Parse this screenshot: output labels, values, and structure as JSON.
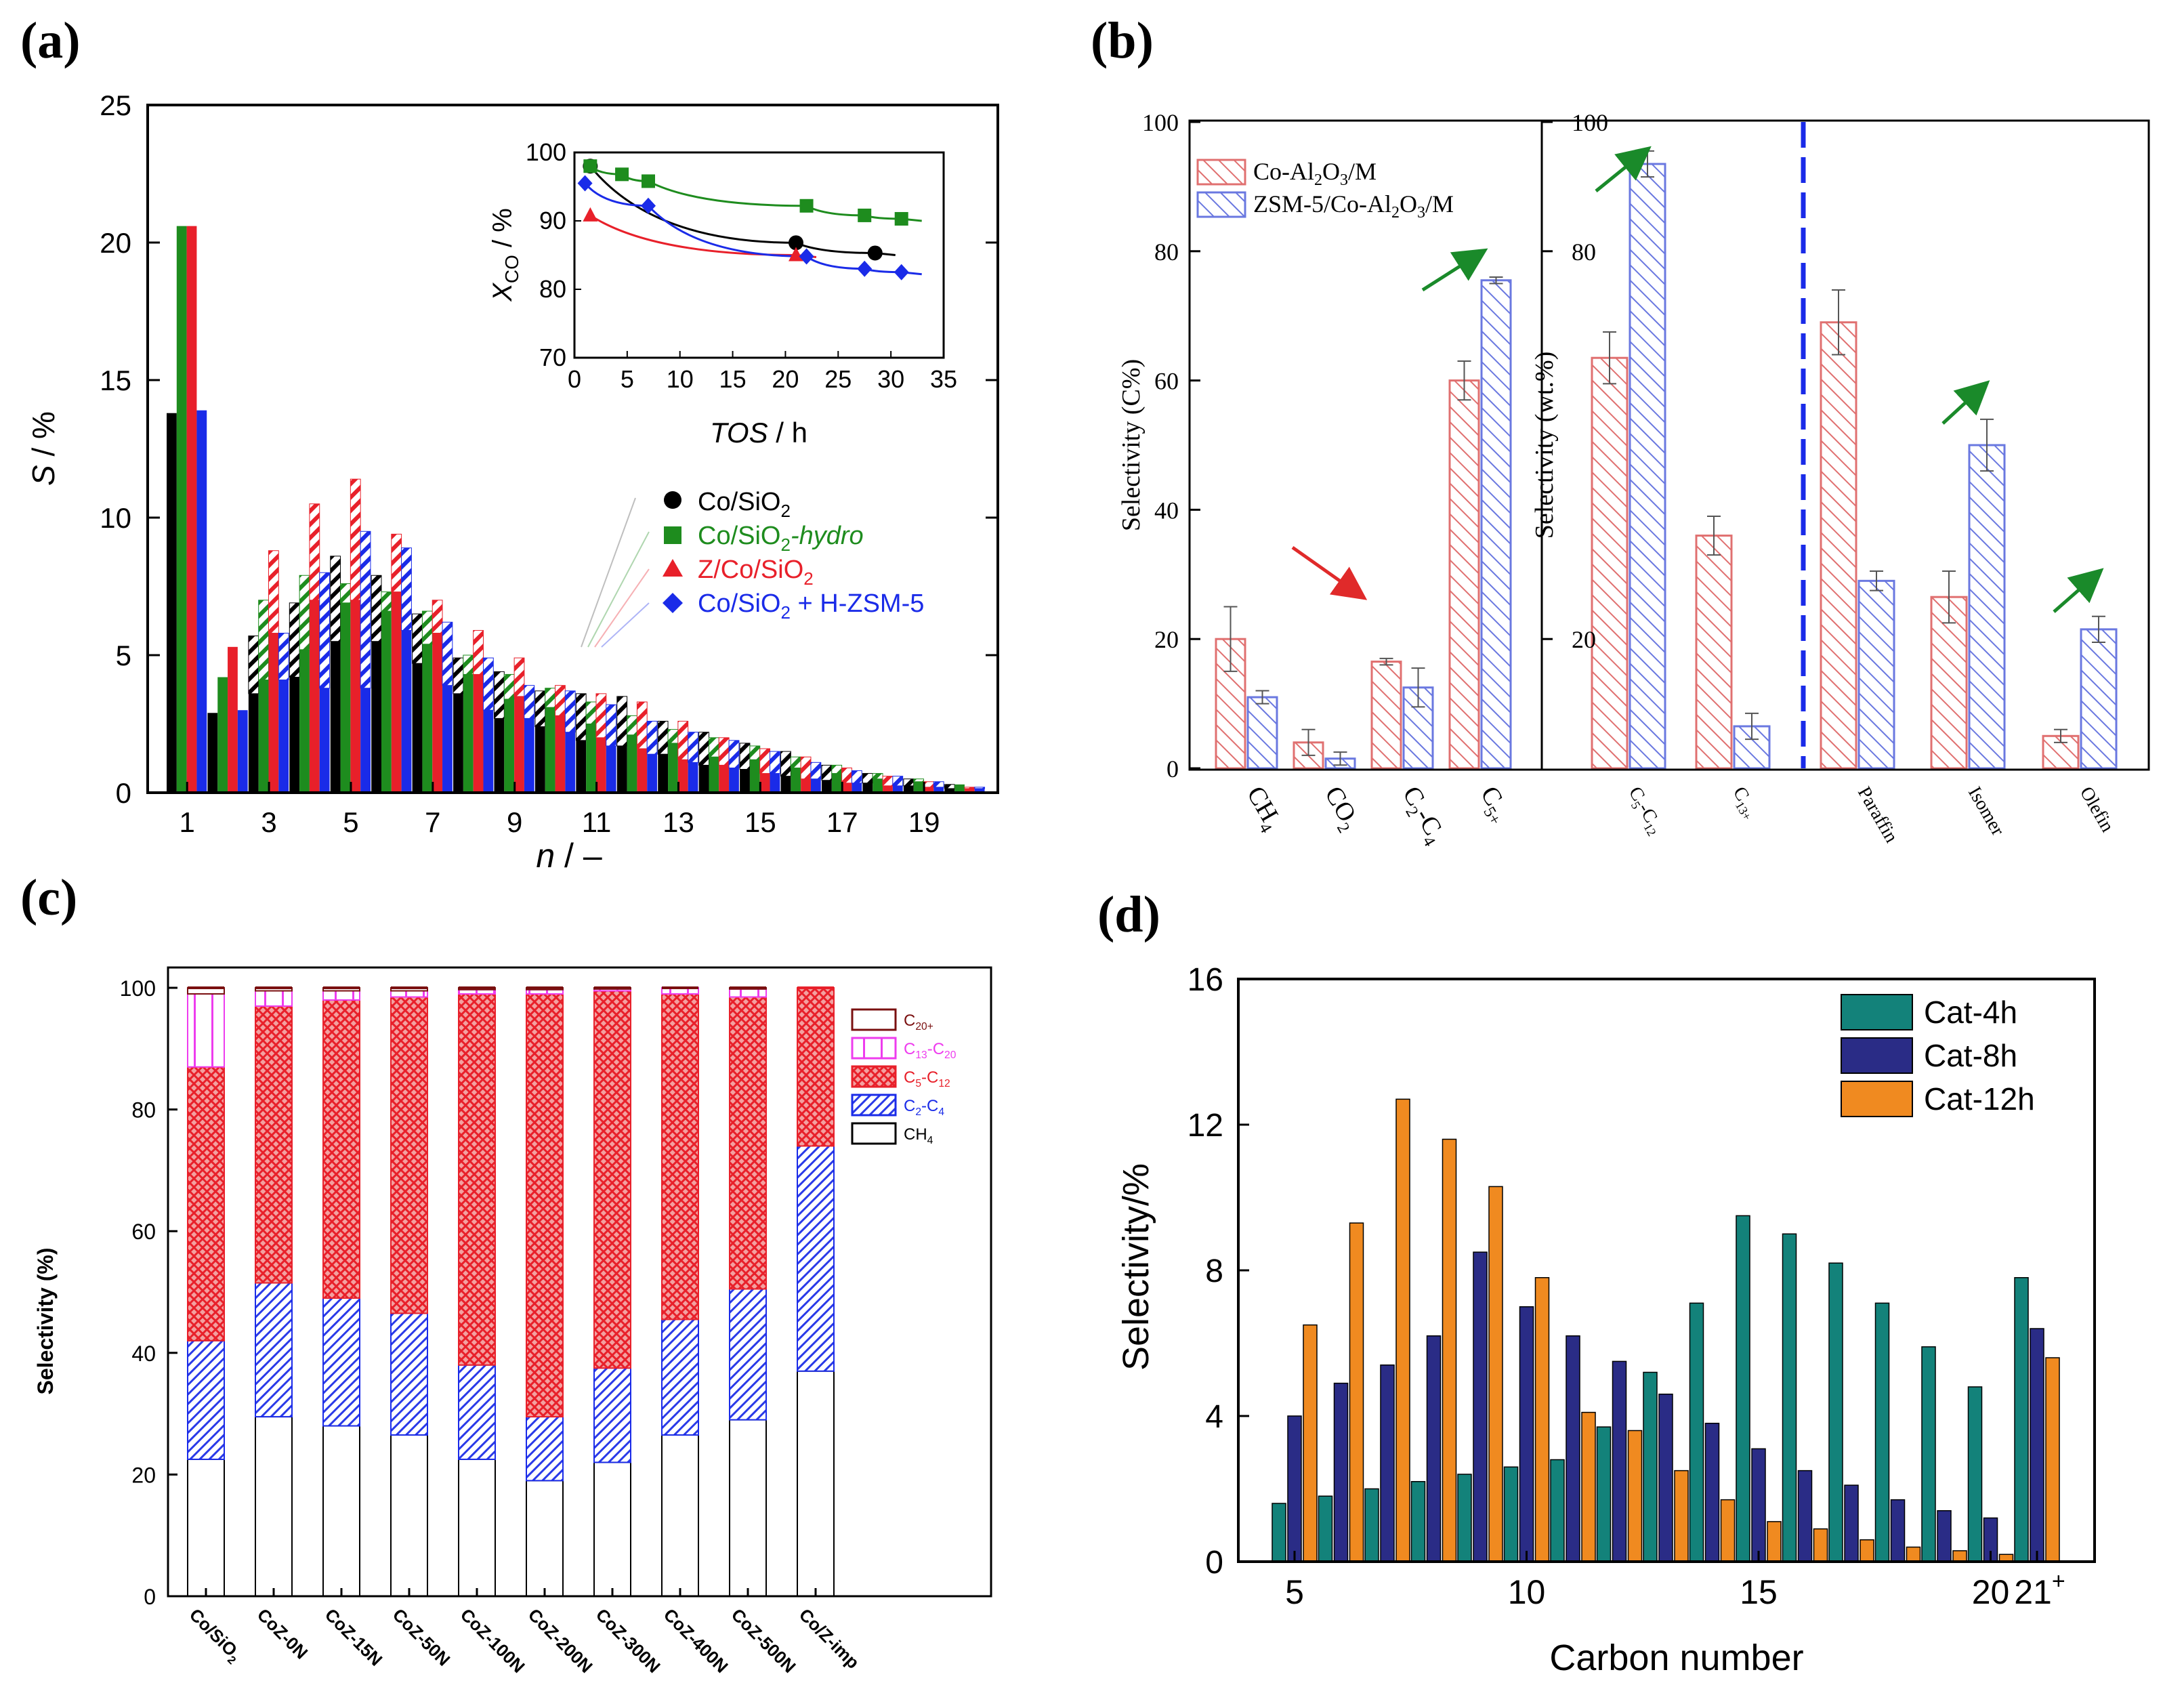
{
  "colors": {
    "black": "#000000",
    "green": "#1e8c1e",
    "red": "#e8202a",
    "blue": "#1a2be8",
    "teal": "#13827a",
    "navy": "#2a2c86",
    "orange": "#f08a20",
    "pink": "#e07070",
    "lightblue": "#6a78e0",
    "magenta": "#ee3cee",
    "darkred": "#7a1010",
    "arrowgreen": "#1a8a2a",
    "arrowred": "#e02a2a"
  },
  "chart_data": [
    {
      "panel_label": "(a)",
      "type": "bar",
      "xlabel_main": "n",
      "xlabel_suffix": " / –",
      "ylabel_main": "S",
      "ylabel_suffix": " / %",
      "ylim": [
        0,
        25
      ],
      "yticks": [
        "0",
        "5",
        "10",
        "15",
        "20",
        "25"
      ],
      "xticks": [
        "1",
        "3",
        "5",
        "7",
        "9",
        "11",
        "13",
        "15",
        "17",
        "19"
      ],
      "categories": [
        1,
        2,
        3,
        4,
        5,
        6,
        7,
        8,
        9,
        10,
        11,
        12,
        13,
        14,
        15,
        16,
        17,
        18,
        19,
        20
      ],
      "series": [
        {
          "name": "Co/SiO2",
          "values": [
            13.8,
            2.9,
            3.6,
            4.2,
            5.5,
            5.5,
            4.7,
            3.6,
            2.7,
            2.4,
            1.9,
            1.7,
            1.4,
            1.0,
            0.85,
            0.6,
            0.45,
            0.35,
            0.25,
            0.15
          ],
          "hatched_above": [
            0,
            0,
            5.7,
            6.9,
            8.6,
            7.9,
            6.5,
            4.9,
            4.4,
            3.7,
            3.6,
            3.5,
            2.6,
            2.2,
            1.8,
            1.5,
            1.0,
            0.7,
            0.5,
            0.3
          ]
        },
        {
          "name": "Co/SiO2-hydro",
          "values": [
            20.6,
            4.2,
            4.1,
            5.2,
            6.9,
            6.6,
            5.4,
            4.3,
            3.4,
            3.1,
            2.5,
            2.1,
            1.8,
            1.3,
            1.2,
            0.9,
            0.7,
            0.5,
            0.4,
            0.3
          ],
          "hatched_above": [
            0,
            0,
            7.0,
            7.9,
            7.6,
            7.3,
            6.6,
            5.0,
            4.3,
            3.8,
            3.3,
            2.8,
            2.3,
            2.0,
            1.7,
            1.3,
            1.0,
            0.7,
            0.5,
            0.3
          ]
        },
        {
          "name": "Z/Co/SiO2",
          "values": [
            20.6,
            5.3,
            5.8,
            7.0,
            7.0,
            7.3,
            5.8,
            4.3,
            3.5,
            2.8,
            2.0,
            1.6,
            1.2,
            1.0,
            0.7,
            0.5,
            0.35,
            0.25,
            0.2,
            0.15
          ],
          "hatched_above": [
            0,
            0,
            8.8,
            10.5,
            11.4,
            9.4,
            7.0,
            5.9,
            4.9,
            3.9,
            3.6,
            3.3,
            2.6,
            2.0,
            1.6,
            1.3,
            0.9,
            0.6,
            0.4,
            0.2
          ]
        },
        {
          "name": "Co/SiO2 + H-ZSM-5",
          "values": [
            13.9,
            3.0,
            4.1,
            3.8,
            3.8,
            5.9,
            3.9,
            3.0,
            2.7,
            2.2,
            1.7,
            1.4,
            1.1,
            0.9,
            0.7,
            0.5,
            0.35,
            0.25,
            0.2,
            0.15
          ],
          "hatched_above": [
            0,
            0,
            5.8,
            8.0,
            9.5,
            8.9,
            6.2,
            4.9,
            3.9,
            3.7,
            3.2,
            2.6,
            2.2,
            1.9,
            1.5,
            1.1,
            0.8,
            0.6,
            0.4,
            0.2
          ]
        }
      ],
      "legend": [
        {
          "label": "Co/SiO",
          "sub": "2",
          "suffix": ""
        },
        {
          "label": "Co/SiO",
          "sub": "2",
          "suffix": "-hydro"
        },
        {
          "label": "Z/Co/SiO",
          "sub": "2",
          "suffix": ""
        },
        {
          "label": "Co/SiO",
          "sub": "2",
          "suffix": " + H-ZSM-5"
        }
      ],
      "inset": {
        "type": "scatter",
        "xlabel_main": "TOS",
        "xlabel_suffix": " / h",
        "ylabel_main": "X",
        "ylabel_sub": "CO",
        "ylabel_suffix": " / %",
        "xlim": [
          0,
          35
        ],
        "ylim": [
          70,
          100
        ],
        "xticks": [
          "0",
          "5",
          "10",
          "15",
          "20",
          "25",
          "30",
          "35"
        ],
        "yticks": [
          "70",
          "80",
          "90",
          "100"
        ],
        "series": [
          {
            "name": "Co/SiO2",
            "marker": "circle",
            "x": [
              1.5,
              21,
              28.5
            ],
            "y": [
              98,
              86.8,
              85.3
            ]
          },
          {
            "name": "Co/SiO2-hydro",
            "marker": "square",
            "x": [
              1.5,
              4.5,
              7,
              22,
              27.5,
              31
            ],
            "y": [
              98,
              96.8,
              95.8,
              92.2,
              90.8,
              90.3
            ]
          },
          {
            "name": "Z/Co/SiO2",
            "marker": "triangle",
            "x": [
              1.5,
              21
            ],
            "y": [
              90.8,
              85.0
            ]
          },
          {
            "name": "Co/SiO2 + H-ZSM-5",
            "marker": "diamond",
            "x": [
              1,
              7,
              22,
              27.5,
              31
            ],
            "y": [
              95.5,
              92.2,
              84.8,
              83.0,
              82.5
            ]
          }
        ]
      }
    },
    {
      "panel_label": "(b)",
      "type": "bar",
      "left": {
        "ylabel": "Selectivity (C%)",
        "ylim": [
          0,
          100
        ],
        "yticks": [
          "0",
          "20",
          "40",
          "60",
          "80",
          "100"
        ],
        "categories": [
          {
            "main": "CH",
            "sub": "4"
          },
          {
            "main": "CO",
            "sub": "2"
          },
          {
            "main": "C",
            "sub": "2",
            "tail": "-C",
            "tailsub": "4"
          },
          {
            "main": "C",
            "sub": "5+"
          }
        ],
        "series": [
          {
            "name": "Co-Al2O3/M",
            "values": [
              20,
              4,
              16.5,
              60
            ],
            "errors": [
              5,
              2,
              0.5,
              3
            ]
          },
          {
            "name": "ZSM-5/Co-Al2O3/M",
            "values": [
              11,
              1.5,
              12.5,
              75.5
            ],
            "errors": [
              1,
              1,
              3,
              0.5
            ]
          }
        ]
      },
      "right": {
        "ylabel": "Selectivity (wt.%)",
        "ylim": [
          0,
          100
        ],
        "yticks": [
          "20",
          "80",
          "100"
        ],
        "categories": [
          {
            "main": "C",
            "sub": "5",
            "tail": "-C",
            "tailsub": "12"
          },
          {
            "main": "C",
            "sub": "13+"
          },
          {
            "main": "Paraffin"
          },
          {
            "main": "Isomer"
          },
          {
            "main": "Olefin"
          }
        ],
        "series": [
          {
            "name": "Co-Al2O3/M",
            "values": [
              63.5,
              36,
              69,
              26.5,
              5
            ],
            "errors": [
              4,
              3,
              5,
              4,
              1
            ]
          },
          {
            "name": "ZSM-5/Co-Al2O3/M",
            "values": [
              93.5,
              6.5,
              29,
              50,
              21.5
            ],
            "errors": [
              2,
              2,
              1.5,
              4,
              2
            ]
          }
        ]
      },
      "legend": [
        {
          "pre": "Co-Al",
          "s1": "2",
          "mid": "O",
          "s2": "3",
          "post": "/M"
        },
        {
          "pre": "ZSM-5/Co-Al",
          "s1": "2",
          "mid": "O",
          "s2": "3",
          "post": "/M"
        }
      ]
    },
    {
      "panel_label": "(c)",
      "type": "bar",
      "stacked": true,
      "ylabel": "Selectivity (%)",
      "ylim": [
        0,
        100
      ],
      "yticks": [
        "0",
        "20",
        "40",
        "60",
        "80",
        "100"
      ],
      "categories": [
        {
          "main": "Co/SiO",
          "sub": "2"
        },
        {
          "main": "CoZ-0N"
        },
        {
          "main": "CoZ-15N"
        },
        {
          "main": "CoZ-50N"
        },
        {
          "main": "CoZ-100N"
        },
        {
          "main": "CoZ-200N"
        },
        {
          "main": "CoZ-300N"
        },
        {
          "main": "CoZ-400N"
        },
        {
          "main": "CoZ-500N"
        },
        {
          "main": "Co/Z-imp"
        }
      ],
      "series": [
        {
          "name": "CH4",
          "values": [
            22.5,
            29.5,
            28,
            26.5,
            22.5,
            19,
            22,
            26.5,
            29,
            37
          ]
        },
        {
          "name": "C2-C4",
          "values": [
            19.5,
            22,
            21,
            20,
            15.5,
            10.5,
            15.5,
            19,
            21.5,
            37
          ]
        },
        {
          "name": "C5-C12",
          "values": [
            45,
            45.5,
            49,
            52,
            61,
            69.5,
            62,
            53.5,
            48,
            26
          ]
        },
        {
          "name": "C13-C20",
          "values": [
            12,
            2.5,
            1.5,
            1,
            0.7,
            0.7,
            0.3,
            1,
            1.3,
            0
          ]
        },
        {
          "name": "C20+",
          "values": [
            1,
            0.5,
            0.5,
            0.5,
            0.3,
            0.3,
            0.2,
            0,
            0.2,
            0
          ]
        }
      ],
      "legend": [
        {
          "main": "C",
          "sub": "20+"
        },
        {
          "main": "C",
          "sub": "13",
          "tail": "-C",
          "tailsub": "20"
        },
        {
          "main": "C",
          "sub": "5",
          "tail": "-C",
          "tailsub": "12"
        },
        {
          "main": "C",
          "sub": "2",
          "tail": "-C",
          "tailsub": "4"
        },
        {
          "main": "CH",
          "sub": "4"
        }
      ]
    },
    {
      "panel_label": "(d)",
      "type": "bar",
      "xlabel": "Carbon number",
      "ylabel": "Selectivity/%",
      "ylim": [
        0,
        16
      ],
      "yticks": [
        "0",
        "4",
        "8",
        "12",
        "16"
      ],
      "xticks": [
        "5",
        "10",
        "15",
        "20"
      ],
      "xtick_last": {
        "main": "21",
        "sup": "+"
      },
      "categories": [
        5,
        6,
        7,
        8,
        9,
        10,
        11,
        12,
        13,
        14,
        15,
        16,
        17,
        18,
        19,
        20,
        21
      ],
      "series": [
        {
          "name": "Cat-4h",
          "values": [
            1.6,
            1.8,
            2.0,
            2.2,
            2.4,
            2.6,
            2.8,
            3.7,
            5.2,
            7.1,
            9.5,
            9.0,
            8.2,
            7.1,
            5.9,
            4.8,
            7.8
          ]
        },
        {
          "name": "Cat-8h",
          "values": [
            4.0,
            4.9,
            5.4,
            6.2,
            8.5,
            7.0,
            6.2,
            5.5,
            4.6,
            3.8,
            3.1,
            2.5,
            2.1,
            1.7,
            1.4,
            1.2,
            6.4
          ]
        },
        {
          "name": "Cat-12h",
          "values": [
            6.5,
            9.3,
            12.7,
            11.6,
            10.3,
            7.8,
            4.1,
            3.6,
            2.5,
            1.7,
            1.1,
            0.9,
            0.6,
            0.4,
            0.3,
            0.2,
            5.6
          ]
        }
      ]
    }
  ]
}
